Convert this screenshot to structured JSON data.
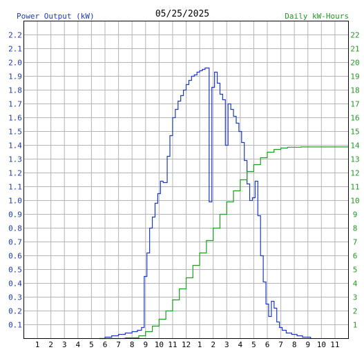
{
  "chart_data": {
    "type": "line",
    "title": "05/25/2025",
    "left_axis": {
      "label": "Power Output (kW)",
      "color": "#1c3ab8",
      "ylim": [
        0,
        2.3
      ],
      "ticks": [
        "0.1",
        "0.2",
        "0.3",
        "0.4",
        "0.5",
        "0.6",
        "0.7",
        "0.8",
        "0.9",
        "1.0",
        "1.1",
        "1.2",
        "1.3",
        "1.4",
        "1.5",
        "1.6",
        "1.7",
        "1.8",
        "1.9",
        "2.0",
        "2.1",
        "2.2"
      ]
    },
    "right_axis": {
      "label": "Daily kW-Hours",
      "color": "#1f9a1f",
      "ylim": [
        0,
        23
      ],
      "ticks": [
        "1",
        "2",
        "3",
        "4",
        "5",
        "6",
        "7",
        "8",
        "9",
        "10",
        "11",
        "12",
        "13",
        "14",
        "15",
        "16",
        "17",
        "18",
        "19",
        "20",
        "21",
        "22"
      ]
    },
    "x_axis": {
      "xlim": [
        0,
        24
      ],
      "ticks": [
        "1",
        "2",
        "3",
        "4",
        "5",
        "6",
        "7",
        "8",
        "9",
        "10",
        "11",
        "12",
        "1",
        "2",
        "3",
        "4",
        "5",
        "6",
        "7",
        "8",
        "9",
        "10",
        "11"
      ]
    },
    "grid": true,
    "series": [
      {
        "name": "Power Output (kW)",
        "axis": "left",
        "color": "#1c3ab8",
        "step": true,
        "points": [
          [
            5.6,
            0.0
          ],
          [
            6.0,
            0.01
          ],
          [
            6.5,
            0.02
          ],
          [
            7.0,
            0.03
          ],
          [
            7.5,
            0.04
          ],
          [
            8.0,
            0.05
          ],
          [
            8.4,
            0.06
          ],
          [
            8.7,
            0.08
          ],
          [
            8.9,
            0.45
          ],
          [
            9.1,
            0.62
          ],
          [
            9.3,
            0.8
          ],
          [
            9.5,
            0.88
          ],
          [
            9.7,
            0.98
          ],
          [
            9.9,
            1.05
          ],
          [
            10.1,
            1.14
          ],
          [
            10.3,
            1.13
          ],
          [
            10.6,
            1.32
          ],
          [
            10.8,
            1.47
          ],
          [
            11.0,
            1.6
          ],
          [
            11.2,
            1.66
          ],
          [
            11.4,
            1.72
          ],
          [
            11.6,
            1.76
          ],
          [
            11.8,
            1.8
          ],
          [
            12.0,
            1.84
          ],
          [
            12.2,
            1.87
          ],
          [
            12.4,
            1.9
          ],
          [
            12.6,
            1.91
          ],
          [
            12.8,
            1.93
          ],
          [
            13.0,
            1.94
          ],
          [
            13.2,
            1.95
          ],
          [
            13.4,
            1.96
          ],
          [
            13.7,
            0.99
          ],
          [
            13.9,
            1.82
          ],
          [
            14.1,
            1.93
          ],
          [
            14.3,
            1.85
          ],
          [
            14.5,
            1.77
          ],
          [
            14.7,
            1.73
          ],
          [
            14.9,
            1.4
          ],
          [
            15.1,
            1.7
          ],
          [
            15.3,
            1.66
          ],
          [
            15.5,
            1.61
          ],
          [
            15.7,
            1.56
          ],
          [
            15.9,
            1.5
          ],
          [
            16.1,
            1.42
          ],
          [
            16.3,
            1.29
          ],
          [
            16.5,
            1.12
          ],
          [
            16.7,
            1.0
          ],
          [
            16.9,
            1.02
          ],
          [
            17.1,
            1.14
          ],
          [
            17.3,
            0.89
          ],
          [
            17.5,
            0.6
          ],
          [
            17.7,
            0.41
          ],
          [
            17.9,
            0.25
          ],
          [
            18.1,
            0.16
          ],
          [
            18.3,
            0.27
          ],
          [
            18.5,
            0.22
          ],
          [
            18.7,
            0.12
          ],
          [
            18.9,
            0.08
          ],
          [
            19.1,
            0.06
          ],
          [
            19.4,
            0.04
          ],
          [
            19.8,
            0.03
          ],
          [
            20.2,
            0.02
          ],
          [
            20.6,
            0.01
          ],
          [
            21.0,
            0.01
          ],
          [
            21.2,
            0.0
          ]
        ]
      },
      {
        "name": "Daily kW-Hours",
        "axis": "right",
        "color": "#1f9a1f",
        "step": true,
        "points": [
          [
            5.6,
            0.0
          ],
          [
            7.5,
            0.05
          ],
          [
            8.5,
            0.2
          ],
          [
            9.0,
            0.5
          ],
          [
            9.5,
            0.9
          ],
          [
            10.0,
            1.4
          ],
          [
            10.5,
            2.0
          ],
          [
            11.0,
            2.8
          ],
          [
            11.5,
            3.6
          ],
          [
            12.0,
            4.4
          ],
          [
            12.5,
            5.3
          ],
          [
            13.0,
            6.2
          ],
          [
            13.5,
            7.1
          ],
          [
            14.0,
            8.0
          ],
          [
            14.5,
            9.0
          ],
          [
            15.0,
            9.9
          ],
          [
            15.5,
            10.7
          ],
          [
            16.0,
            11.5
          ],
          [
            16.5,
            12.1
          ],
          [
            17.0,
            12.6
          ],
          [
            17.5,
            13.1
          ],
          [
            18.0,
            13.5
          ],
          [
            18.5,
            13.7
          ],
          [
            19.0,
            13.8
          ],
          [
            19.5,
            13.86
          ],
          [
            20.5,
            13.88
          ],
          [
            24.0,
            13.88
          ]
        ]
      }
    ]
  }
}
